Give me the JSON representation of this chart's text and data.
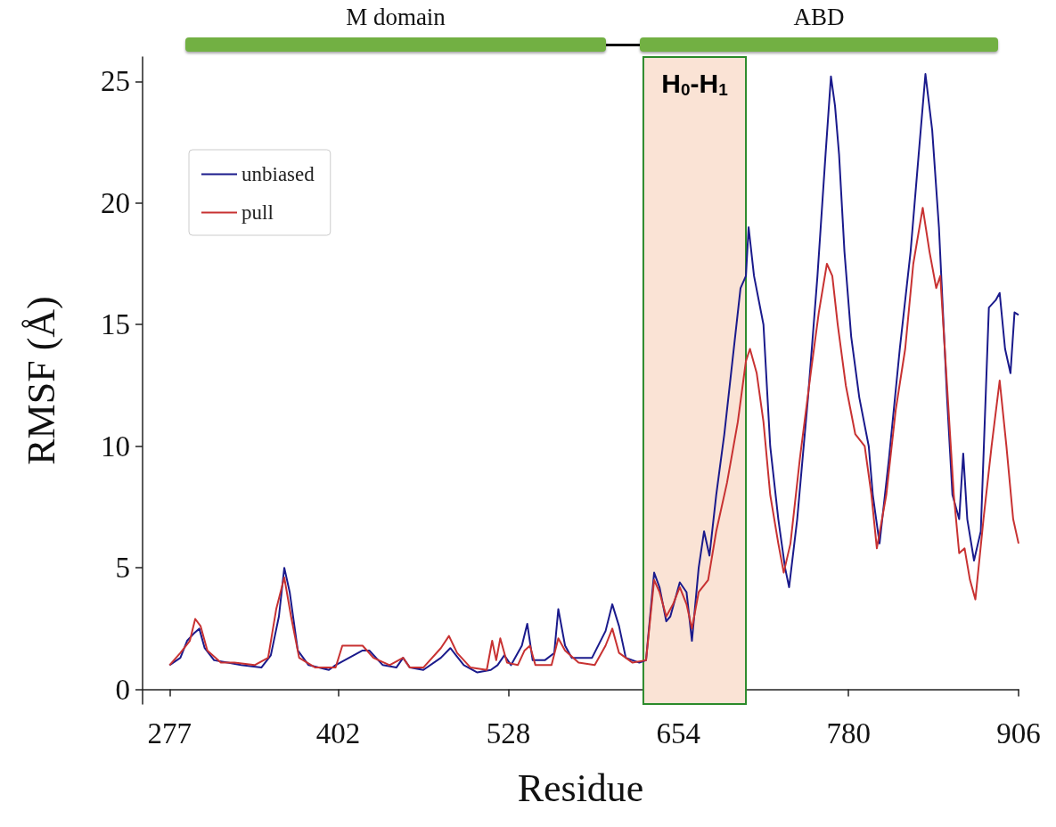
{
  "chart_data": {
    "type": "line",
    "xlabel": "Residue",
    "ylabel": "RMSF (Å)",
    "xlim": [
      257,
      906
    ],
    "xticks": [
      277,
      402,
      528,
      654,
      780,
      906
    ],
    "ylim": [
      -0.6,
      26
    ],
    "yticks": [
      0,
      5,
      10,
      15,
      20,
      25
    ],
    "grid": false,
    "legend": "top left",
    "marker": "none",
    "line_style": "solid",
    "annotations": [
      "M domain",
      "ABD"
    ],
    "bands": [
      {
        "axis": "x",
        "from": 628,
        "to": 704,
        "label": "H$_{0}$-H$_{1}$",
        "color": "#fae3d5"
      }
    ],
    "series": [
      {
        "name": "unbiased",
        "color": "#1a1a8c",
        "x": [
          277,
          285,
          290,
          295,
          299,
          303,
          310,
          320,
          330,
          345,
          352,
          358,
          362,
          366,
          372,
          380,
          395,
          400,
          410,
          420,
          425,
          435,
          445,
          450,
          455,
          465,
          478,
          485,
          495,
          505,
          515,
          520,
          525,
          530,
          538,
          542,
          546,
          555,
          562,
          565,
          570,
          575,
          590,
          600,
          605,
          610,
          615,
          625,
          630,
          636,
          640,
          645,
          648,
          655,
          660,
          664,
          669,
          673,
          677,
          682,
          688,
          694,
          700,
          704,
          706,
          710,
          717,
          722,
          728,
          733,
          736,
          742,
          750,
          757,
          763,
          767,
          770,
          773,
          777,
          782,
          788,
          795,
          798,
          803,
          810,
          818,
          826,
          832,
          837,
          842,
          847,
          853,
          857,
          862,
          865,
          868,
          873,
          878,
          884,
          889,
          892,
          896,
          900,
          903,
          906
        ],
        "values": [
          1.0,
          1.3,
          2.0,
          2.3,
          2.5,
          1.7,
          1.2,
          1.1,
          1.0,
          0.9,
          1.4,
          3.0,
          5.0,
          4.0,
          1.6,
          1.0,
          0.8,
          1.0,
          1.3,
          1.6,
          1.6,
          1.0,
          0.9,
          1.3,
          0.9,
          0.8,
          1.3,
          1.7,
          1.0,
          0.7,
          0.8,
          1.0,
          1.4,
          1.0,
          1.8,
          2.7,
          1.2,
          1.2,
          1.5,
          3.3,
          1.8,
          1.3,
          1.3,
          2.4,
          3.5,
          2.6,
          1.3,
          1.1,
          1.2,
          4.8,
          4.2,
          2.8,
          3.0,
          4.4,
          4.0,
          2.0,
          5.0,
          6.5,
          5.5,
          8.0,
          10.5,
          13.5,
          16.5,
          17.0,
          19.0,
          17.0,
          15.0,
          10.0,
          7.0,
          5.0,
          4.2,
          7.0,
          12.0,
          17.0,
          22.0,
          25.2,
          24.0,
          22.0,
          18.0,
          14.5,
          12.0,
          10.0,
          8.0,
          6.0,
          9.5,
          14.0,
          18.0,
          22.0,
          25.3,
          23.0,
          19.0,
          12.0,
          8.0,
          7.0,
          9.7,
          7.0,
          5.3,
          6.5,
          15.7,
          16.0,
          16.3,
          14.0,
          13.0,
          15.5,
          15.4
        ]
      },
      {
        "name": "pull",
        "color": "#c83232",
        "x": [
          277,
          285,
          292,
          296,
          300,
          305,
          315,
          325,
          340,
          350,
          356,
          362,
          367,
          373,
          385,
          400,
          405,
          412,
          420,
          428,
          440,
          450,
          455,
          465,
          478,
          484,
          490,
          500,
          512,
          516,
          519,
          522,
          527,
          535,
          540,
          544,
          548,
          560,
          565,
          570,
          580,
          592,
          600,
          605,
          610,
          620,
          630,
          636,
          640,
          645,
          650,
          655,
          660,
          664,
          669,
          676,
          682,
          690,
          698,
          704,
          707,
          712,
          717,
          722,
          728,
          732,
          737,
          744,
          752,
          758,
          764,
          768,
          772,
          778,
          785,
          792,
          797,
          801,
          808,
          815,
          822,
          828,
          835,
          840,
          845,
          848,
          853,
          858,
          862,
          866,
          870,
          874,
          880,
          886,
          892,
          897,
          902,
          906
        ],
        "values": [
          1.0,
          1.5,
          2.0,
          2.9,
          2.6,
          1.6,
          1.1,
          1.1,
          1.0,
          1.3,
          3.3,
          4.6,
          3.0,
          1.3,
          0.9,
          0.9,
          1.8,
          1.8,
          1.8,
          1.3,
          1.0,
          1.3,
          0.9,
          0.9,
          1.7,
          2.2,
          1.5,
          0.9,
          0.8,
          2.0,
          1.2,
          2.1,
          1.1,
          1.0,
          1.6,
          1.8,
          1.0,
          1.0,
          2.1,
          1.6,
          1.1,
          1.0,
          1.8,
          2.5,
          1.5,
          1.1,
          1.2,
          4.5,
          4.0,
          3.0,
          3.5,
          4.2,
          3.5,
          2.5,
          4.0,
          4.5,
          6.5,
          8.5,
          11.0,
          13.5,
          14.0,
          13.0,
          11.0,
          8.0,
          6.0,
          4.8,
          6.0,
          9.5,
          13.0,
          15.5,
          17.5,
          17.0,
          15.0,
          12.5,
          10.5,
          10.0,
          8.0,
          5.8,
          8.0,
          11.5,
          14.0,
          17.5,
          19.8,
          18.0,
          16.5,
          17.0,
          12.5,
          8.0,
          5.6,
          5.8,
          4.5,
          3.7,
          7.0,
          10.0,
          12.7,
          10.0,
          7.0,
          6.0
        ]
      }
    ]
  }
}
